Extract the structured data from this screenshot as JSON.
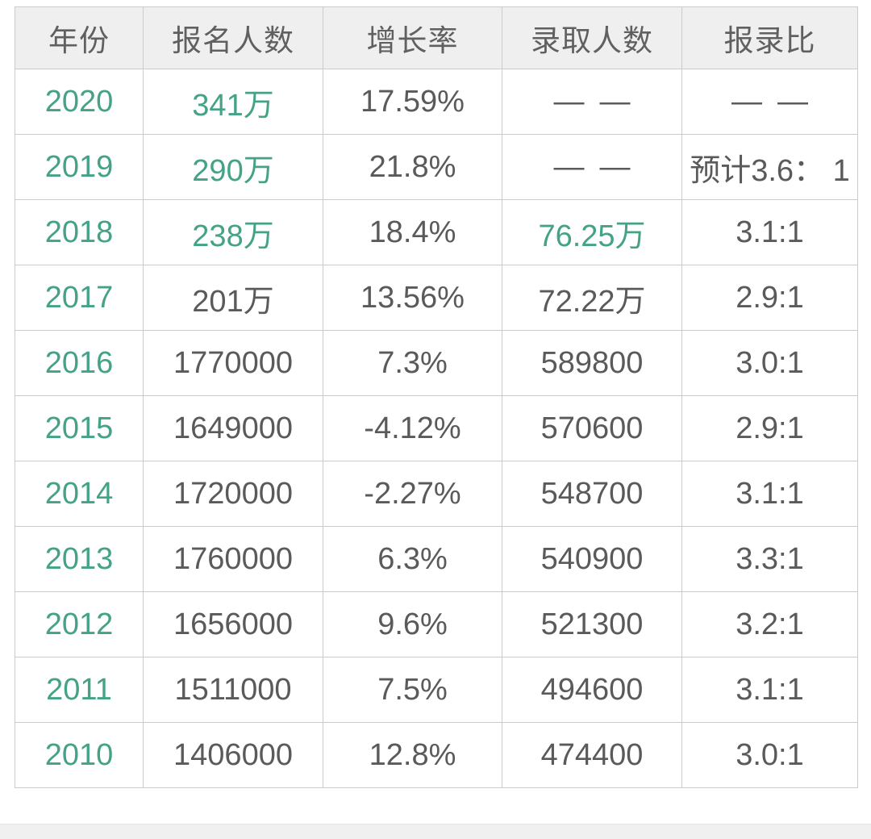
{
  "colors": {
    "green_text": "#44a287",
    "dark_text": "#5a5a5a",
    "header_bg": "#f0eff0",
    "border": "#cbcbcb",
    "footer_strip_bg": "#f0f0f0"
  },
  "table": {
    "headers": [
      "年份",
      "报名人数",
      "增长率",
      "录取人数",
      "报录比"
    ],
    "rows": [
      {
        "cells": [
          {
            "t": "2020",
            "g": true
          },
          {
            "t": "341万",
            "g": true
          },
          {
            "t": "17.59%"
          },
          {
            "t": "— —"
          },
          {
            "t": "— —"
          }
        ]
      },
      {
        "cells": [
          {
            "t": "2019",
            "g": true
          },
          {
            "t": "290万",
            "g": true
          },
          {
            "t": "21.8%"
          },
          {
            "t": "— —"
          },
          {
            "t": "预计3.6： 1"
          }
        ]
      },
      {
        "cells": [
          {
            "t": "2018",
            "g": true
          },
          {
            "t": "238万",
            "g": true
          },
          {
            "t": "18.4%"
          },
          {
            "t": "76.25万",
            "g": true
          },
          {
            "t": "3.1:1"
          }
        ]
      },
      {
        "cells": [
          {
            "t": "2017",
            "g": true
          },
          {
            "t": "201万"
          },
          {
            "t": "13.56%"
          },
          {
            "t": "72.22万"
          },
          {
            "t": "2.9:1"
          }
        ]
      },
      {
        "cells": [
          {
            "t": "2016",
            "g": true
          },
          {
            "t": "1770000"
          },
          {
            "t": "7.3%"
          },
          {
            "t": "589800"
          },
          {
            "t": "3.0:1"
          }
        ]
      },
      {
        "cells": [
          {
            "t": "2015",
            "g": true
          },
          {
            "t": "1649000"
          },
          {
            "t": "-4.12%"
          },
          {
            "t": "570600"
          },
          {
            "t": "2.9:1"
          }
        ]
      },
      {
        "cells": [
          {
            "t": "2014",
            "g": true
          },
          {
            "t": "1720000"
          },
          {
            "t": "-2.27%"
          },
          {
            "t": "548700"
          },
          {
            "t": "3.1:1"
          }
        ]
      },
      {
        "cells": [
          {
            "t": "2013",
            "g": true
          },
          {
            "t": "1760000"
          },
          {
            "t": "6.3%"
          },
          {
            "t": "540900"
          },
          {
            "t": "3.3:1"
          }
        ]
      },
      {
        "cells": [
          {
            "t": "2012",
            "g": true
          },
          {
            "t": "1656000"
          },
          {
            "t": "9.6%"
          },
          {
            "t": "521300"
          },
          {
            "t": "3.2:1"
          }
        ]
      },
      {
        "cells": [
          {
            "t": "2011",
            "g": true
          },
          {
            "t": "1511000"
          },
          {
            "t": "7.5%"
          },
          {
            "t": "494600"
          },
          {
            "t": "3.1:1"
          }
        ]
      },
      {
        "cells": [
          {
            "t": "2010",
            "g": true
          },
          {
            "t": "1406000"
          },
          {
            "t": "12.8%"
          },
          {
            "t": "474400"
          },
          {
            "t": "3.0:1"
          }
        ]
      }
    ]
  }
}
